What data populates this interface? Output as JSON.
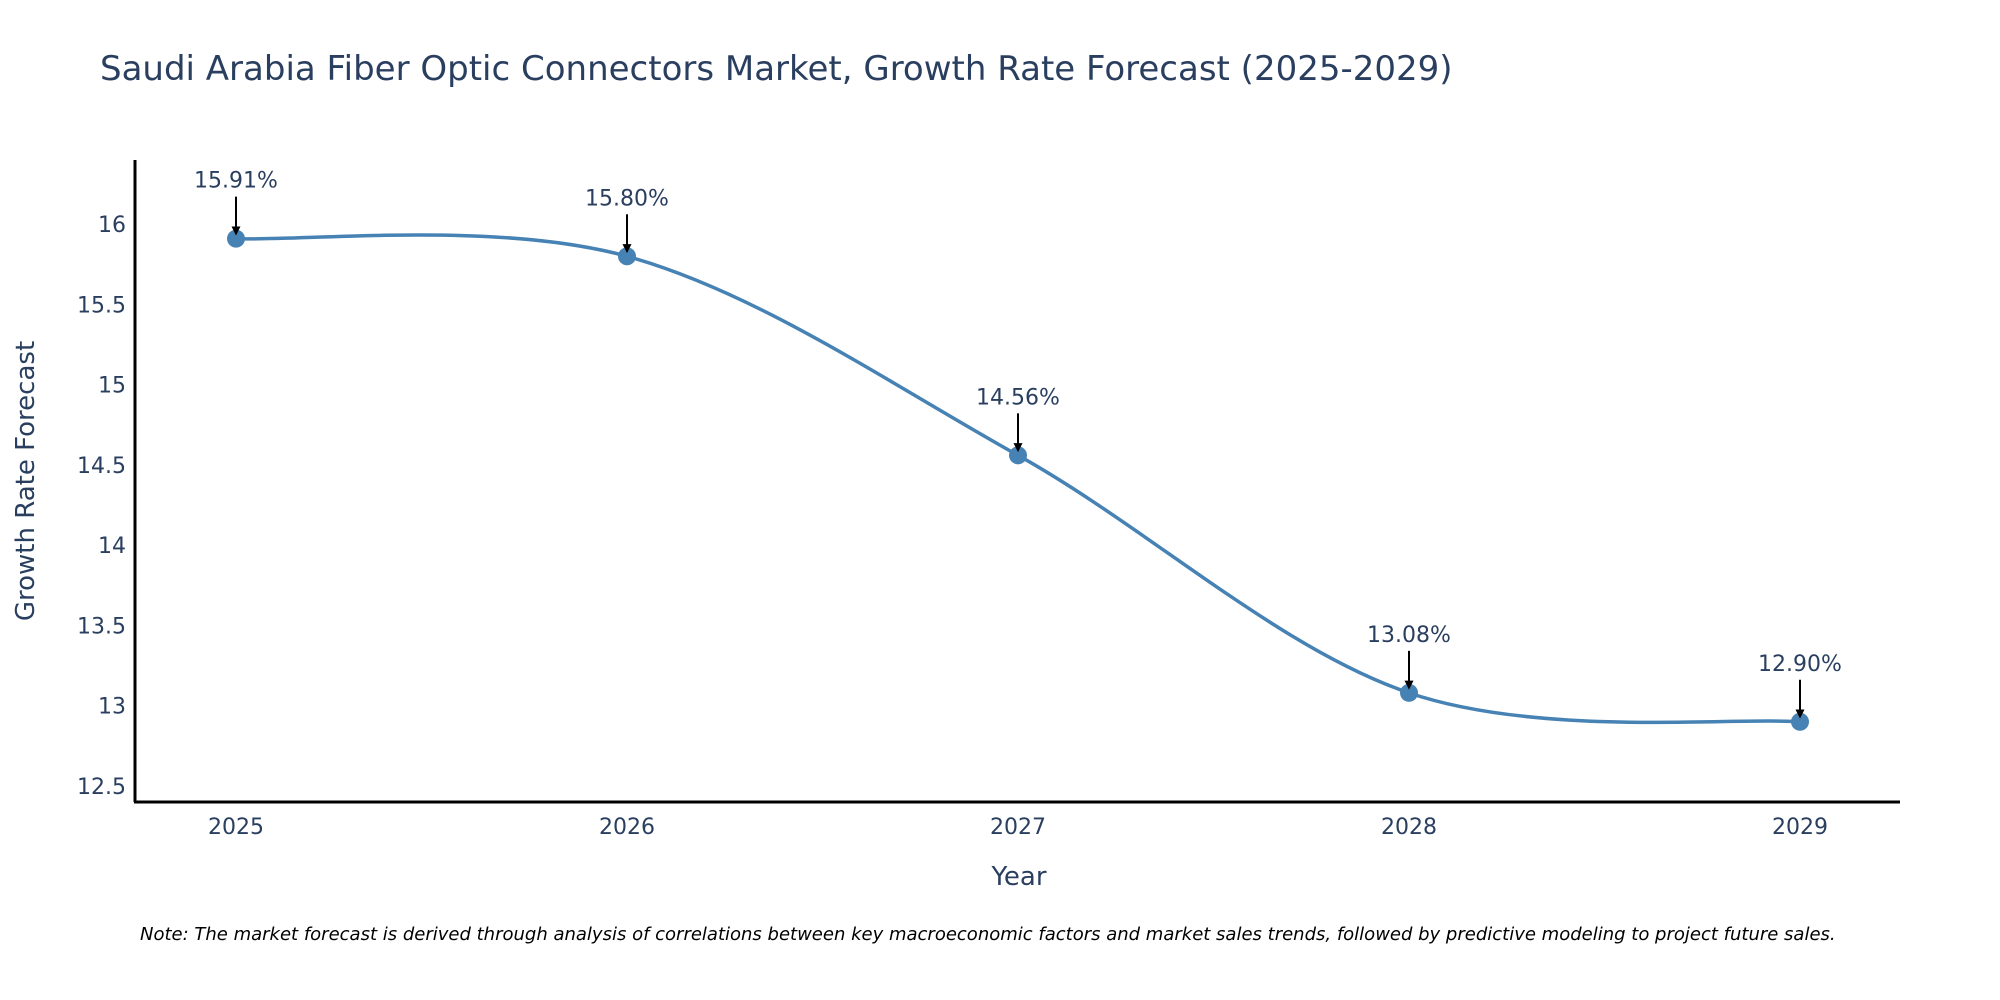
{
  "chart_data": {
    "type": "line",
    "title": "Saudi Arabia Fiber Optic Connectors Market, Growth Rate Forecast (2025-2029)",
    "xlabel": "Year",
    "ylabel": "Growth Rate Forecast",
    "categories": [
      "2025",
      "2026",
      "2027",
      "2028",
      "2029"
    ],
    "series": [
      {
        "name": "Growth Rate Forecast",
        "values": [
          15.91,
          15.8,
          14.56,
          13.08,
          12.9
        ]
      }
    ],
    "data_labels": [
      "15.91%",
      "15.80%",
      "14.56%",
      "13.08%",
      "12.90%"
    ],
    "y_ticks": [
      "12.5",
      "13",
      "13.5",
      "14",
      "14.5",
      "15",
      "15.5",
      "16"
    ],
    "ylim": [
      12.4,
      16.4
    ],
    "line_shape": "spline",
    "grid": false,
    "note": "Note: The market forecast is derived through analysis of correlations between key macroeconomic factors and market sales trends, followed by predictive modeling to project future sales.",
    "colors": {
      "line": "#4682b4",
      "marker": "#4682b4",
      "axis": "#000000",
      "text": "#2a3f5f",
      "arrow": "#000000"
    }
  }
}
